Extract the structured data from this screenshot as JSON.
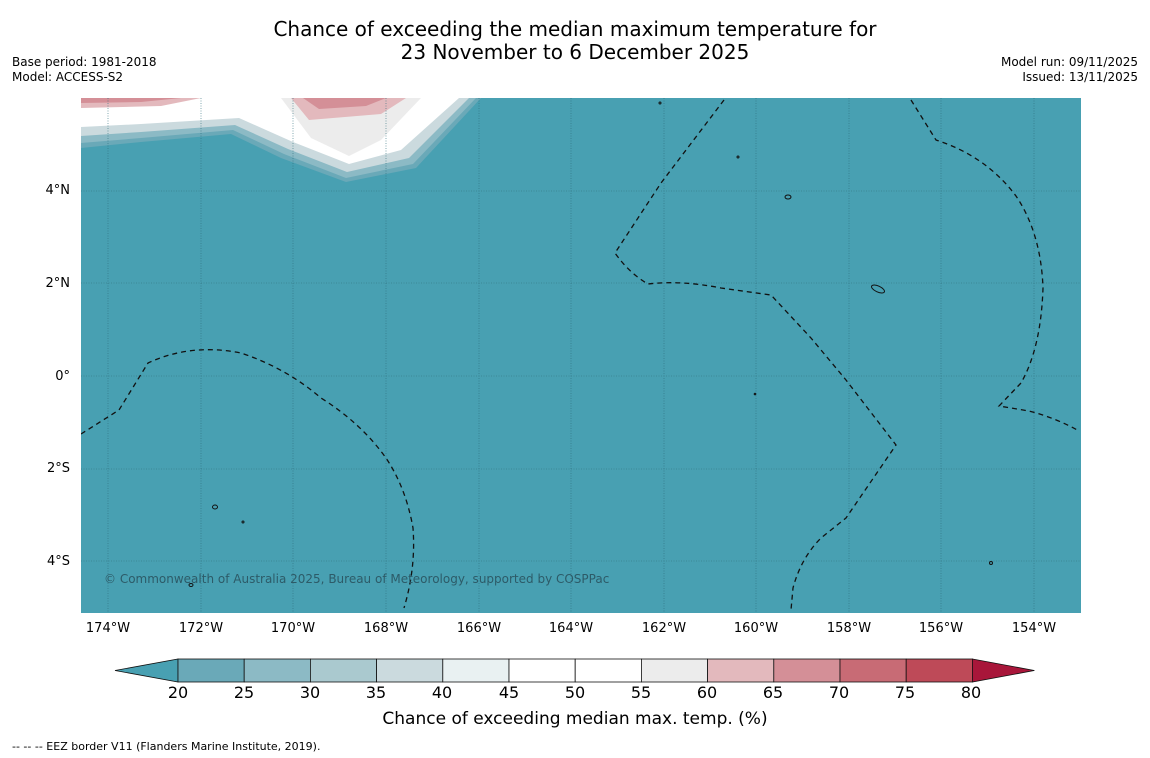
{
  "title": {
    "line1": "Chance of exceeding the median maximum temperature for",
    "line2": "23 November to 6 December 2025"
  },
  "meta_left": {
    "base_period": "Base period: 1981-2018",
    "model": "Model: ACCESS-S2"
  },
  "meta_right": {
    "model_run": "Model run: 09/11/2025",
    "issued": "Issued: 13/11/2025"
  },
  "map": {
    "background_color": "#48a0b2",
    "lat_labels": [
      "4°N",
      "2°N",
      "0°",
      "2°S",
      "4°S"
    ],
    "lat_values": [
      4,
      2,
      0,
      -2,
      -4
    ],
    "lon_labels": [
      "174°W",
      "172°W",
      "170°W",
      "168°W",
      "166°W",
      "164°W",
      "162°W",
      "160°W",
      "158°W",
      "156°W",
      "154°W"
    ],
    "lon_values": [
      -174,
      -172,
      -170,
      -168,
      -166,
      -164,
      -162,
      -160,
      -158,
      -156,
      -154
    ],
    "copyright": "© Commonwealth of Australia 2025, Bureau of Meteorology, supported by COSPPac"
  },
  "colorbar": {
    "ticks": [
      "20",
      "25",
      "30",
      "35",
      "40",
      "45",
      "50",
      "55",
      "60",
      "65",
      "70",
      "75",
      "80"
    ],
    "tick_values": [
      20,
      25,
      30,
      35,
      40,
      45,
      50,
      55,
      60,
      65,
      70,
      75,
      80
    ],
    "colors": [
      "#48a0b2",
      "#6aa9b8",
      "#8cbac5",
      "#aac9cf",
      "#cbdade",
      "#e9f1f2",
      "#ffffff",
      "#ffffff",
      "#ececec",
      "#e3b9bd",
      "#d48f97",
      "#c86b75",
      "#be4a58",
      "#a8163a"
    ],
    "title": "Chance of exceeding median max. temp. (%)"
  },
  "footnote": "--  --  -- EEZ border V11 (Flanders Marine Institute, 2019)."
}
